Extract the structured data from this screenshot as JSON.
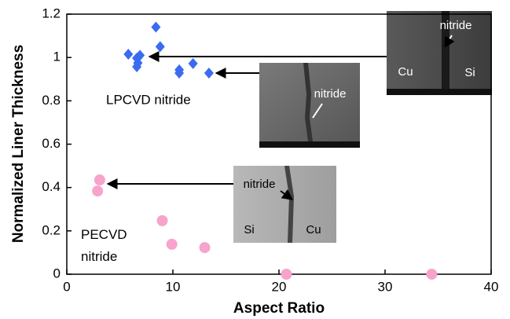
{
  "chart_data": {
    "type": "scatter",
    "xlabel": "Aspect Ratio",
    "ylabel": "Normalized Liner Thickness",
    "xlim": [
      0,
      40
    ],
    "xticks": [
      0,
      10,
      20,
      30,
      40
    ],
    "ylim": [
      0,
      1.2
    ],
    "yticks": [
      0,
      0.2,
      0.4,
      0.6,
      0.8,
      1,
      1.2
    ],
    "series": [
      {
        "name": "LPCVD nitride",
        "color": "#3a6cf0",
        "marker": "diamond",
        "x": [
          5.8,
          8.4,
          8.8,
          6.6,
          6.9,
          6.7,
          6.6,
          10.6,
          10.6,
          11.9,
          13.4
        ],
        "values": [
          1.015,
          1.14,
          1.05,
          0.997,
          1.01,
          0.975,
          0.957,
          0.943,
          0.928,
          0.972,
          0.928
        ]
      },
      {
        "name": "PECVD nitride",
        "color": "#f7a3cc",
        "marker": "circle",
        "x": [
          3.1,
          2.9,
          9.0,
          9.9,
          13.0,
          20.7,
          34.4
        ],
        "values": [
          0.435,
          0.384,
          0.247,
          0.138,
          0.123,
          0,
          0
        ]
      }
    ],
    "insets": [
      {
        "labels": [
          "nitride",
          "Cu",
          "Si"
        ]
      },
      {
        "labels": [
          "nitride"
        ]
      },
      {
        "labels": [
          "nitride",
          "Si",
          "Cu"
        ]
      }
    ]
  }
}
